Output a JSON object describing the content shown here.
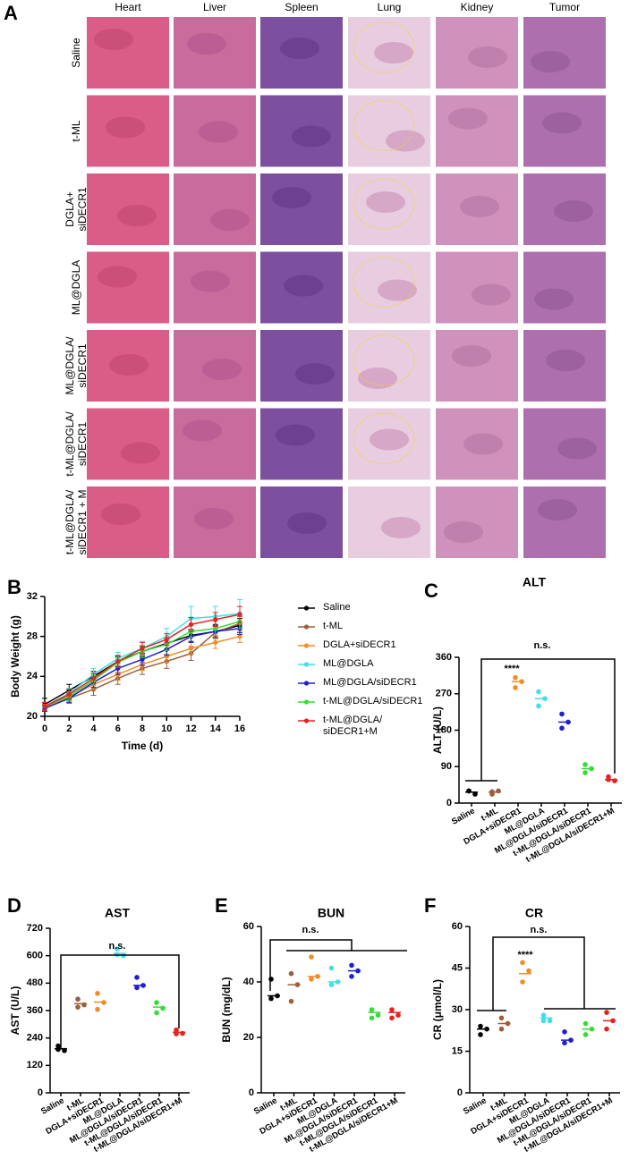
{
  "panel_a": {
    "label": "A",
    "columns": [
      "Heart",
      "Liver",
      "Spleen",
      "Lung",
      "Kidney",
      "Tumor"
    ],
    "rows": [
      [
        "Saline"
      ],
      [
        "t-ML"
      ],
      [
        "DGLA+",
        "siDECR1"
      ],
      [
        "ML@DGLA"
      ],
      [
        "ML@DGLA/",
        "siDECR1"
      ],
      [
        "t-ML@DGLA/",
        "siDECR1"
      ],
      [
        "t-ML@DGLA/",
        "siDECR1 + M"
      ]
    ]
  },
  "chart_data": [
    {
      "type": "line",
      "panel": "B",
      "x_label": "Time (d)",
      "y_label": "Body Weight (g)",
      "x": [
        0,
        2,
        4,
        6,
        8,
        10,
        12,
        14,
        16
      ],
      "xlim": [
        0,
        16
      ],
      "xticks": [
        0,
        2,
        4,
        6,
        8,
        10,
        12,
        14,
        16
      ],
      "ylim": [
        20,
        32
      ],
      "yticks": [
        20,
        24,
        28,
        32
      ],
      "series": [
        {
          "name": "Saline",
          "color": "#000000",
          "values": [
            21.2,
            22.6,
            24.0,
            25.5,
            26.5,
            27.3,
            28.1,
            28.5,
            29.1
          ],
          "errors": [
            0.6,
            0.6,
            0.5,
            0.5,
            0.5,
            0.6,
            0.6,
            0.7,
            0.7
          ]
        },
        {
          "name": "t-ML",
          "color": "#9b5f3b",
          "values": [
            21.0,
            21.8,
            22.7,
            23.8,
            24.8,
            25.5,
            26.3,
            28.4,
            29.3
          ],
          "errors": [
            0.4,
            0.5,
            0.6,
            0.6,
            0.6,
            0.7,
            0.7,
            0.6,
            0.7
          ]
        },
        {
          "name": "DGLA+siDECR1",
          "color": "#f28c28",
          "values": [
            20.9,
            21.9,
            23.2,
            24.2,
            25.2,
            26.0,
            26.8,
            27.4,
            28.0
          ],
          "errors": [
            0.3,
            0.4,
            0.5,
            0.6,
            0.6,
            0.6,
            0.6,
            0.6,
            0.6
          ]
        },
        {
          "name": "ML@DGLA",
          "color": "#3fdfe8",
          "values": [
            21.0,
            22.3,
            24.2,
            25.8,
            26.8,
            28.0,
            29.8,
            30.0,
            30.3
          ],
          "errors": [
            0.4,
            0.5,
            0.6,
            0.6,
            0.7,
            0.8,
            1.2,
            1.0,
            1.4
          ]
        },
        {
          "name": "ML@DGLA/siDECR1",
          "color": "#1f1fd1",
          "values": [
            20.8,
            21.8,
            23.4,
            24.8,
            25.7,
            26.7,
            28.0,
            28.5,
            28.8
          ],
          "errors": [
            0.3,
            0.4,
            0.5,
            0.6,
            0.6,
            0.6,
            0.6,
            0.6,
            0.6
          ]
        },
        {
          "name": "t-ML@DGLA/siDECR1",
          "color": "#33dd33",
          "values": [
            21.0,
            22.0,
            23.6,
            25.4,
            26.5,
            27.2,
            28.5,
            28.8,
            29.5
          ],
          "errors": [
            0.4,
            0.4,
            0.5,
            0.5,
            0.6,
            0.6,
            0.6,
            0.7,
            0.7
          ]
        },
        {
          "name": "t-ML@DGLA/ siDECR1+M",
          "color": "#e8211f",
          "values": [
            21.0,
            22.2,
            23.8,
            25.5,
            26.8,
            27.7,
            29.2,
            29.7,
            30.2
          ],
          "errors": [
            0.4,
            0.5,
            0.5,
            0.6,
            0.6,
            0.6,
            0.7,
            0.7,
            0.8
          ]
        }
      ]
    },
    {
      "type": "dot",
      "panel": "C",
      "title": "ALT",
      "y_label": "ALT (U/L)",
      "categories": [
        "Saline",
        "t-ML",
        "DGLA+siDECR1",
        "ML@DGLA",
        "ML@DGLA/siDECR1",
        "t-ML@DGLA/siDECR1",
        "t-ML@DGLA/siDECR1+M"
      ],
      "colors": [
        "#000000",
        "#9b5f3b",
        "#f28c28",
        "#3fdfe8",
        "#1f1fd1",
        "#33dd33",
        "#e8211f"
      ],
      "points": [
        [
          30,
          22,
          30
        ],
        [
          22,
          30,
          28
        ],
        [
          310,
          300,
          285
        ],
        [
          275,
          258,
          240
        ],
        [
          220,
          200,
          185
        ],
        [
          95,
          85,
          75
        ],
        [
          65,
          55,
          58
        ]
      ],
      "means": [
        27,
        27,
        300,
        258,
        200,
        85,
        58
      ],
      "ylim": [
        0,
        360
      ],
      "yticks": [
        0,
        90,
        180,
        270,
        360
      ],
      "annotations": [
        "****",
        "n.s."
      ]
    },
    {
      "type": "dot",
      "panel": "D",
      "title": "AST",
      "y_label": "AST (U/L)",
      "categories": [
        "Saline",
        "t-ML",
        "DGLA+siDECR1",
        "ML@DGLA",
        "ML@DGLA/siDECR1",
        "t-ML@DGLA/siDECR1",
        "t-ML@DGLA/siDECR1+M"
      ],
      "colors": [
        "#000000",
        "#9b5f3b",
        "#f28c28",
        "#3fdfe8",
        "#1f1fd1",
        "#33dd33",
        "#e8211f"
      ],
      "points": [
        [
          205,
          185,
          190
        ],
        [
          410,
          385,
          375
        ],
        [
          435,
          395,
          365
        ],
        [
          630,
          600,
          605
        ],
        [
          505,
          470,
          460
        ],
        [
          395,
          370,
          350
        ],
        [
          275,
          260,
          258
        ]
      ],
      "means": [
        193,
        390,
        397,
        610,
        470,
        375,
        265
      ],
      "ylim": [
        0,
        720
      ],
      "yticks": [
        0,
        120,
        240,
        360,
        480,
        600,
        720
      ],
      "annotations": [
        "n.s."
      ]
    },
    {
      "type": "dot",
      "panel": "E",
      "title": "BUN",
      "y_label": "BUN (mg/dL)",
      "categories": [
        "Saline",
        "t-ML",
        "DGLA+siDECR1",
        "ML@DGLA",
        "ML@DGLA/siDECR1",
        "t-ML@DGLA/siDECR1",
        "t-ML@DGLA/siDECR1+M"
      ],
      "colors": [
        "#000000",
        "#9b5f3b",
        "#f28c28",
        "#3fdfe8",
        "#1f1fd1",
        "#33dd33",
        "#e8211f"
      ],
      "points": [
        [
          41,
          35,
          34
        ],
        [
          43,
          39,
          33
        ],
        [
          49,
          42,
          41
        ],
        [
          45,
          40,
          39
        ],
        [
          46,
          44,
          42
        ],
        [
          30,
          28,
          27
        ],
        [
          30,
          28,
          27
        ]
      ],
      "means": [
        35,
        39,
        42,
        40,
        44,
        29,
        29
      ],
      "ylim": [
        0,
        60
      ],
      "yticks": [
        0,
        20,
        40,
        60
      ],
      "annotations": [
        "n.s."
      ]
    },
    {
      "type": "dot",
      "panel": "F",
      "title": "CR",
      "y_label": "CR (μmol/L)",
      "categories": [
        "Saline",
        "t-ML",
        "DGLA+siDECR1",
        "ML@DGLA",
        "ML@DGLA/siDECR1",
        "t-ML@DGLA/siDECR1",
        "t-ML@DGLA/siDECR1+M"
      ],
      "colors": [
        "#000000",
        "#9b5f3b",
        "#f28c28",
        "#3fdfe8",
        "#1f1fd1",
        "#33dd33",
        "#e8211f"
      ],
      "points": [
        [
          24,
          23,
          21
        ],
        [
          27,
          25,
          23
        ],
        [
          47,
          44,
          40
        ],
        [
          28,
          26,
          26
        ],
        [
          22,
          19,
          18
        ],
        [
          25,
          23,
          21
        ],
        [
          29,
          26,
          23
        ]
      ],
      "means": [
        23,
        25,
        43,
        27,
        19,
        23,
        26
      ],
      "ylim": [
        0,
        60
      ],
      "yticks": [
        0,
        15,
        30,
        45,
        60
      ],
      "annotations": [
        "****",
        "n.s."
      ]
    }
  ]
}
